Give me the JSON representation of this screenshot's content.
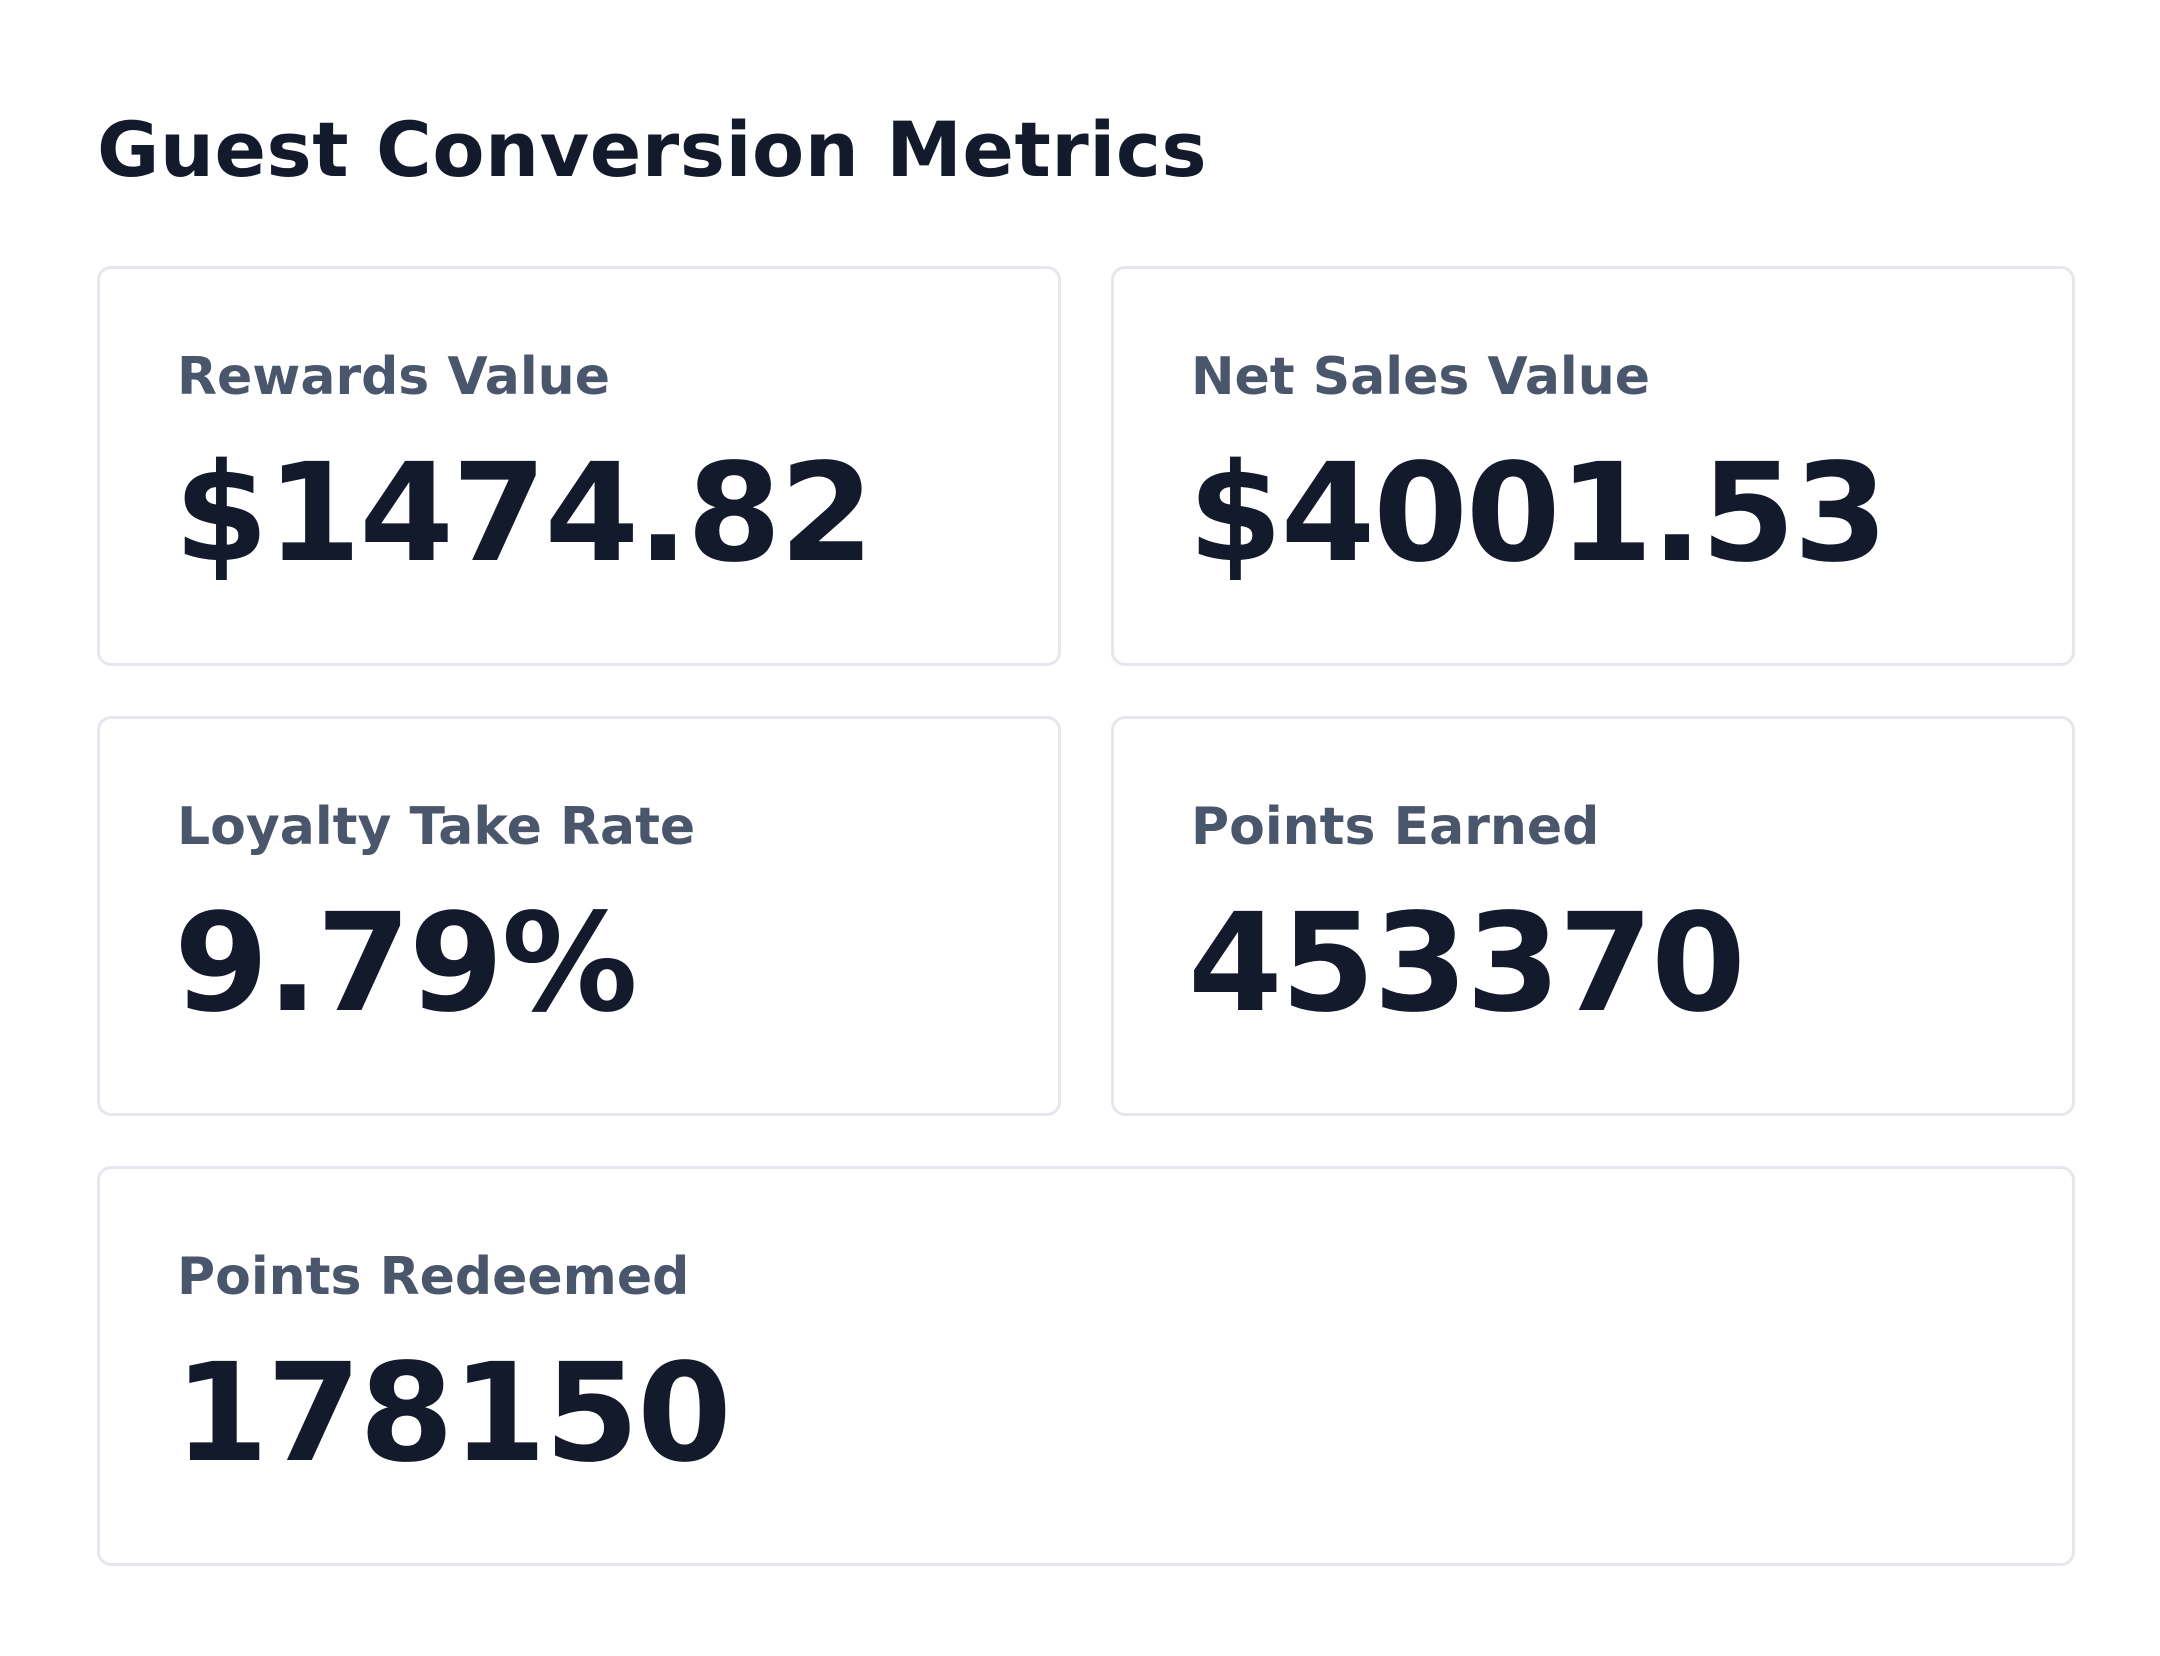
{
  "header": {
    "title": "Guest Conversion Metrics"
  },
  "metrics": [
    {
      "label": "Rewards Value",
      "value": "$1474.82"
    },
    {
      "label": "Net Sales Value",
      "value": "$4001.53"
    },
    {
      "label": "Loyalty Take Rate",
      "value": "9.79%"
    },
    {
      "label": "Points Earned",
      "value": "453370"
    },
    {
      "label": "Points Redeemed",
      "value": "178150"
    }
  ],
  "colors": {
    "title": "#131a2b",
    "label": "#4a566b",
    "value": "#131a2b",
    "card_border": "#e5e7ee",
    "background": "#ffffff"
  }
}
